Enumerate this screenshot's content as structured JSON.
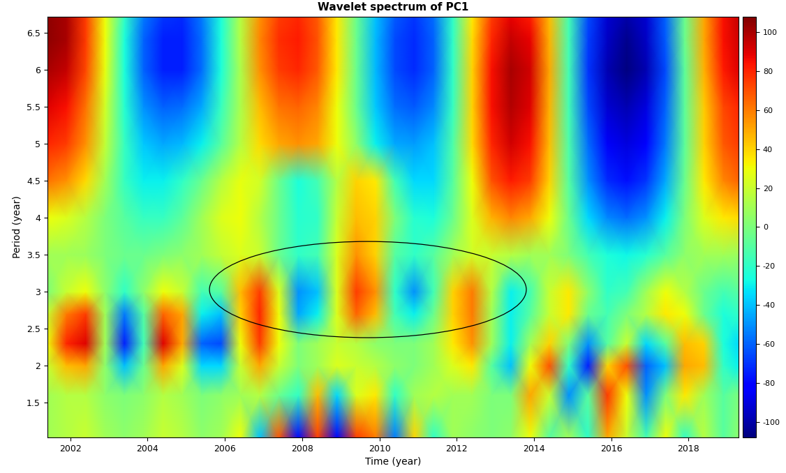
{
  "chart_data": {
    "type": "heatmap",
    "title": "Wavelet spectrum of PC1",
    "x_label": "Time (year)",
    "y_label": "Period (year)",
    "xlim": [
      2001.4,
      2019.3
    ],
    "xticks": [
      2002,
      2004,
      2006,
      2008,
      2010,
      2012,
      2014,
      2016,
      2018
    ],
    "ylim": [
      1.03,
      6.72
    ],
    "yticks": [
      1.5,
      2,
      2.5,
      3,
      3.5,
      4,
      4.5,
      5,
      5.5,
      6,
      6.5
    ],
    "x": [
      2001.4,
      2001.9,
      2002.4,
      2002.9,
      2003.4,
      2003.9,
      2004.4,
      2004.9,
      2005.4,
      2005.9,
      2006.4,
      2006.9,
      2007.4,
      2007.9,
      2008.4,
      2008.9,
      2009.4,
      2009.9,
      2010.4,
      2010.9,
      2011.4,
      2011.9,
      2012.4,
      2012.9,
      2013.4,
      2013.9,
      2014.4,
      2014.9,
      2015.4,
      2015.9,
      2016.4,
      2016.9,
      2017.4,
      2017.9,
      2018.4,
      2018.9,
      2019.3
    ],
    "y": [
      1.03,
      1.6,
      2.0,
      2.3,
      2.7,
      3.0,
      3.5,
      4.0,
      4.5,
      5.0,
      5.5,
      6.0,
      6.4,
      6.72
    ],
    "cells": [
      [
        10,
        15,
        20,
        10,
        5,
        10,
        20,
        15,
        5,
        10,
        30,
        -40,
        70,
        -80,
        75,
        -85,
        75,
        60,
        -55,
        40,
        -20,
        10,
        5,
        0,
        5,
        30,
        -10,
        10,
        -20,
        50,
        20,
        -15,
        30,
        -20,
        15,
        -10,
        5
      ],
      [
        10,
        15,
        15,
        5,
        0,
        5,
        15,
        10,
        0,
        5,
        10,
        15,
        -5,
        -20,
        45,
        -35,
        25,
        35,
        -20,
        10,
        15,
        10,
        10,
        0,
        0,
        50,
        20,
        -50,
        -10,
        75,
        30,
        -50,
        0,
        35,
        10,
        -10,
        0
      ],
      [
        20,
        45,
        50,
        5,
        -40,
        -5,
        50,
        25,
        -35,
        -35,
        20,
        50,
        20,
        0,
        10,
        25,
        20,
        15,
        5,
        0,
        10,
        25,
        35,
        -10,
        -40,
        30,
        70,
        -20,
        -75,
        40,
        70,
        -60,
        -40,
        50,
        45,
        -20,
        -30
      ],
      [
        30,
        80,
        90,
        10,
        -75,
        -15,
        90,
        50,
        -60,
        -65,
        30,
        75,
        30,
        0,
        10,
        20,
        15,
        5,
        0,
        0,
        10,
        35,
        55,
        10,
        -30,
        10,
        40,
        0,
        -50,
        -10,
        20,
        -35,
        -10,
        45,
        40,
        -25,
        -35
      ],
      [
        20,
        60,
        75,
        10,
        -55,
        -10,
        65,
        50,
        -30,
        -40,
        40,
        80,
        30,
        -45,
        -30,
        25,
        65,
        45,
        -15,
        -30,
        -5,
        40,
        60,
        10,
        -30,
        -10,
        20,
        35,
        -5,
        -15,
        0,
        15,
        35,
        30,
        -5,
        -25,
        -20
      ],
      [
        0,
        20,
        30,
        5,
        -20,
        5,
        30,
        20,
        -15,
        -10,
        45,
        75,
        25,
        -50,
        -40,
        25,
        75,
        55,
        -20,
        -50,
        -15,
        40,
        60,
        15,
        -30,
        -15,
        20,
        35,
        5,
        -20,
        -15,
        10,
        30,
        15,
        -5,
        -15,
        -10
      ],
      [
        10,
        10,
        8,
        0,
        -5,
        -5,
        0,
        5,
        10,
        18,
        25,
        20,
        -5,
        -20,
        -15,
        25,
        55,
        40,
        -10,
        -20,
        -10,
        10,
        22,
        20,
        15,
        10,
        10,
        0,
        -15,
        -25,
        -28,
        -22,
        -10,
        5,
        10,
        10,
        8
      ],
      [
        30,
        25,
        15,
        0,
        -10,
        -18,
        -18,
        -8,
        10,
        25,
        30,
        15,
        -5,
        -22,
        -20,
        20,
        45,
        40,
        0,
        -22,
        -25,
        -5,
        25,
        48,
        58,
        50,
        30,
        -5,
        -35,
        -52,
        -58,
        -50,
        -30,
        0,
        25,
        35,
        38
      ],
      [
        62,
        55,
        38,
        10,
        -18,
        -30,
        -30,
        -20,
        -5,
        15,
        28,
        22,
        -5,
        -25,
        -15,
        15,
        40,
        35,
        -15,
        -35,
        -35,
        -10,
        30,
        70,
        82,
        75,
        40,
        -10,
        -50,
        -72,
        -78,
        -70,
        -45,
        -5,
        35,
        58,
        65
      ],
      [
        80,
        75,
        55,
        18,
        -18,
        -38,
        -45,
        -42,
        -30,
        -10,
        15,
        38,
        50,
        55,
        50,
        30,
        5,
        -30,
        -45,
        -48,
        -40,
        -12,
        38,
        80,
        92,
        85,
        45,
        -12,
        -58,
        -85,
        -90,
        -82,
        -55,
        -8,
        40,
        68,
        75
      ],
      [
        90,
        85,
        62,
        22,
        -22,
        -50,
        -60,
        -58,
        -45,
        -18,
        12,
        45,
        62,
        65,
        58,
        30,
        -5,
        -38,
        -58,
        -62,
        -52,
        -18,
        40,
        85,
        98,
        90,
        48,
        -15,
        -65,
        -92,
        -98,
        -90,
        -60,
        -8,
        42,
        72,
        80
      ],
      [
        100,
        95,
        72,
        28,
        -25,
        -60,
        -75,
        -75,
        -58,
        -25,
        12,
        55,
        75,
        80,
        68,
        35,
        -5,
        -42,
        -65,
        -72,
        -60,
        -20,
        40,
        85,
        100,
        92,
        50,
        -15,
        -70,
        -98,
        -108,
        -98,
        -65,
        -8,
        48,
        82,
        90
      ],
      [
        105,
        100,
        75,
        30,
        -25,
        -60,
        -75,
        -75,
        -58,
        -25,
        15,
        58,
        78,
        82,
        70,
        35,
        -5,
        -42,
        -65,
        -72,
        -60,
        -20,
        38,
        80,
        95,
        88,
        48,
        -15,
        -68,
        -95,
        -105,
        -95,
        -62,
        -5,
        50,
        85,
        92
      ],
      [
        105,
        100,
        75,
        30,
        -20,
        -55,
        -70,
        -72,
        -55,
        -25,
        15,
        55,
        75,
        80,
        68,
        35,
        -5,
        -40,
        -62,
        -70,
        -58,
        -20,
        35,
        75,
        88,
        82,
        45,
        -15,
        -65,
        -92,
        -100,
        -92,
        -60,
        -5,
        50,
        85,
        95
      ]
    ],
    "colorbar_range": [
      -108,
      108
    ],
    "colorbar_ticks": [
      -100,
      -80,
      -60,
      -40,
      -20,
      0,
      20,
      40,
      60,
      80,
      100
    ],
    "highlight": {
      "x": 2009.7,
      "y": 3.03,
      "width": 8.2,
      "height": 1.3
    }
  }
}
